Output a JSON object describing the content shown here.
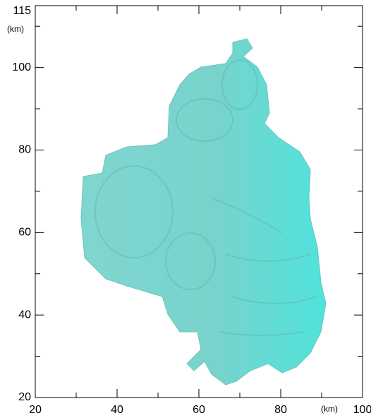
{
  "chart_data": {
    "type": "volume-render",
    "x_unit": "(km)",
    "y_unit": "(km)",
    "xlim": [
      20,
      100
    ],
    "ylim": [
      20,
      115
    ],
    "xticks": [
      20,
      40,
      60,
      80,
      100
    ],
    "yticks": [
      20,
      40,
      60,
      80,
      100,
      115
    ],
    "xminorticks": [
      30,
      50,
      70,
      90
    ],
    "yminorticks": [
      30,
      50,
      70,
      90,
      110
    ],
    "color": "#7fd9d2"
  }
}
